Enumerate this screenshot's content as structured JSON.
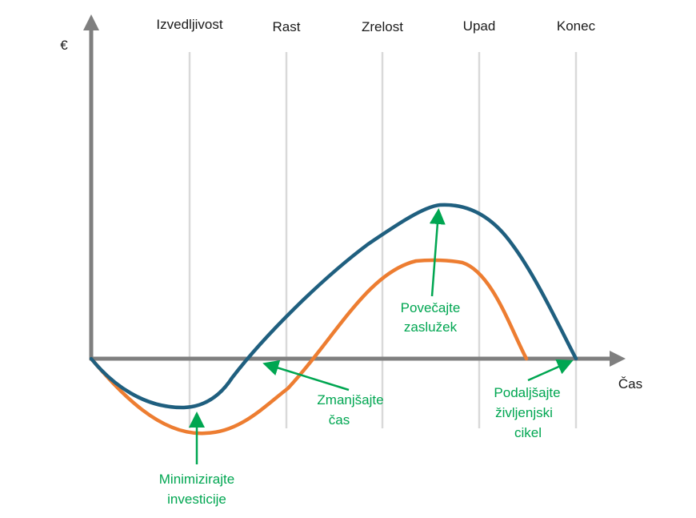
{
  "colors": {
    "axis": "#7f7f7f",
    "grid": "#d9d9d9",
    "curve_blue": "#1f5f7f",
    "curve_orange": "#ed7d31",
    "annotation": "#00a651",
    "text": "#1a1a1a"
  },
  "axes": {
    "y_label": "€",
    "x_label": "Čas"
  },
  "phases": [
    "Izvedljivost",
    "Rast",
    "Zrelost",
    "Upad",
    "Konec"
  ],
  "annotations": {
    "minimize": {
      "line1": "Minimizirajte",
      "line2": "investicije"
    },
    "reduce_time": {
      "line1": "Zmanjšajte",
      "line2": "čas"
    },
    "increase_profit": {
      "line1": "Povečajte",
      "line2": "zaslužek"
    },
    "extend_life": {
      "line1": "Podaljšajte",
      "line2": "življenjski",
      "line3": "cikel"
    }
  }
}
